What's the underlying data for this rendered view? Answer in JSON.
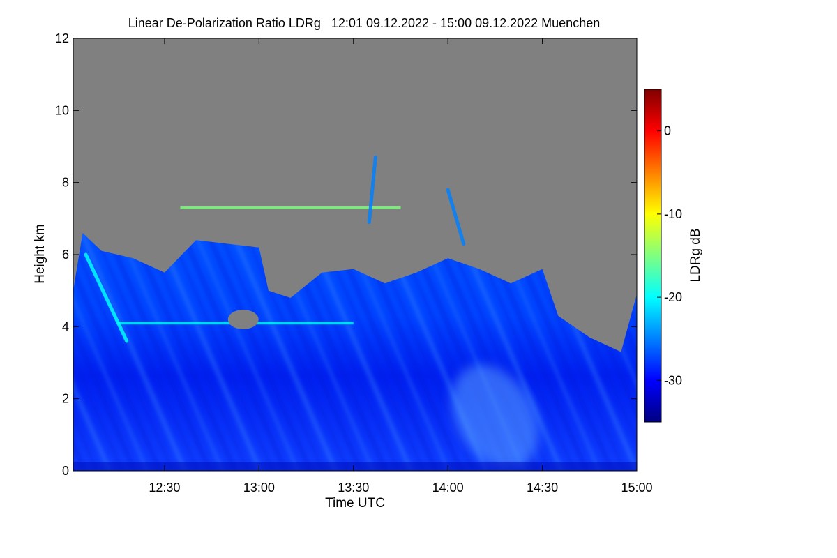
{
  "chart_data": {
    "type": "heatmap",
    "title": "Linear De-Polarization Ratio LDRg   12:01 09.12.2022 - 15:00 09.12.2022 Muenchen",
    "xlabel": "Time UTC",
    "ylabel": "Height km",
    "colorbar_label": "LDRg dB",
    "xlim": [
      "12:01",
      "15:00"
    ],
    "ylim": [
      0,
      12
    ],
    "x_ticks": [
      "12:30",
      "13:00",
      "13:30",
      "14:00",
      "14:30",
      "15:00"
    ],
    "y_ticks": [
      "0",
      "2",
      "4",
      "6",
      "8",
      "10",
      "12"
    ],
    "colorbar_range": [
      -35,
      5
    ],
    "colorbar_ticks": [
      "0",
      "-10",
      "-20",
      "-30"
    ],
    "no_signal_color": "#808080",
    "colormap": [
      "#000080",
      "#0000ff",
      "#0080ff",
      "#00ffff",
      "#80ff80",
      "#ffff00",
      "#ff8000",
      "#ff0000",
      "#800000"
    ],
    "cloud_top_km": [
      {
        "time": "12:01",
        "top": 5.0
      },
      {
        "time": "12:04",
        "top": 6.6
      },
      {
        "time": "12:10",
        "top": 6.1
      },
      {
        "time": "12:20",
        "top": 5.9
      },
      {
        "time": "12:30",
        "top": 5.5
      },
      {
        "time": "12:40",
        "top": 6.4
      },
      {
        "time": "12:50",
        "top": 6.3
      },
      {
        "time": "13:00",
        "top": 6.2
      },
      {
        "time": "13:03",
        "top": 5.0
      },
      {
        "time": "13:10",
        "top": 4.8
      },
      {
        "time": "13:20",
        "top": 5.5
      },
      {
        "time": "13:30",
        "top": 5.6
      },
      {
        "time": "13:40",
        "top": 5.2
      },
      {
        "time": "13:50",
        "top": 5.5
      },
      {
        "time": "14:00",
        "top": 5.9
      },
      {
        "time": "14:10",
        "top": 5.6
      },
      {
        "time": "14:20",
        "top": 5.2
      },
      {
        "time": "14:30",
        "top": 5.6
      },
      {
        "time": "14:35",
        "top": 4.3
      },
      {
        "time": "14:45",
        "top": 3.7
      },
      {
        "time": "14:55",
        "top": 3.3
      },
      {
        "time": "15:00",
        "top": 4.9
      }
    ],
    "layers": [
      {
        "time_start": "12:35",
        "time_end": "13:45",
        "height_km": 7.3,
        "ldr_db": -15
      },
      {
        "time_start": "12:15",
        "time_end": "13:30",
        "height_km": 4.1,
        "ldr_db": -18
      }
    ],
    "gaps": [
      {
        "time": "12:55",
        "height_km": 4.2
      }
    ],
    "fall_streaks": [
      {
        "time_top": "12:05",
        "height_top": 6.0,
        "time_bottom": "12:18",
        "height_bottom": 3.6,
        "ldr_db": -21
      },
      {
        "time_top": "13:37",
        "height_top": 8.7,
        "time_bottom": "13:35",
        "height_bottom": 6.9,
        "ldr_db": -25
      },
      {
        "time_top": "14:00",
        "height_top": 7.8,
        "time_bottom": "14:05",
        "height_bottom": 6.3,
        "ldr_db": -24
      }
    ]
  }
}
